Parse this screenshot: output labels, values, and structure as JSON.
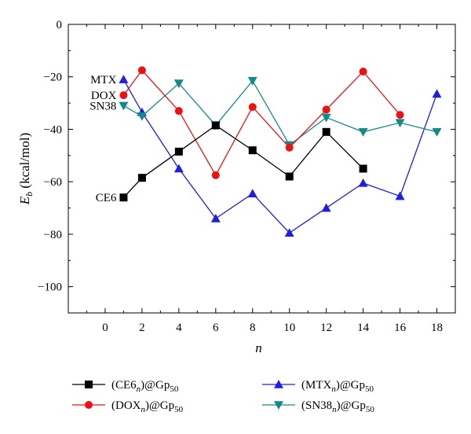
{
  "chart_data": {
    "type": "line",
    "title": "",
    "xlabel": {
      "base": "n"
    },
    "ylabel": {
      "base": "E",
      "sub": "b",
      "rest": " (kcal/mol)"
    },
    "xlim": [
      -2,
      19
    ],
    "ylim": [
      -110,
      0
    ],
    "xticks": [
      0,
      2,
      4,
      6,
      8,
      10,
      12,
      14,
      16,
      18
    ],
    "yticks": [
      0,
      -20,
      -40,
      -60,
      -80,
      -100
    ],
    "xtick_labels": [
      "0",
      "2",
      "4",
      "6",
      "8",
      "10",
      "12",
      "14",
      "16",
      "18"
    ],
    "ytick_labels": [
      "0",
      "−20",
      "−40",
      "−60",
      "−80",
      "−100"
    ],
    "grid": false,
    "legend_position": "bottom",
    "series": [
      {
        "id": "ce6",
        "label": "CE6",
        "legend": {
          "pre": "(CE6",
          "sub1": "n",
          "mid": ")@Gp",
          "sub2": "50"
        },
        "color": "#000000",
        "marker": "square",
        "x": [
          1,
          2,
          4,
          6,
          8,
          10,
          12,
          14
        ],
        "y": [
          -66,
          -58.5,
          -48.5,
          -38.5,
          -48,
          -58,
          -41,
          -55
        ]
      },
      {
        "id": "dox",
        "label": "DOX",
        "legend": {
          "pre": "(DOX",
          "sub1": "n",
          "mid": ")@Gp",
          "sub2": "50"
        },
        "color": "#ee1111",
        "marker": "circle",
        "x": [
          1,
          2,
          4,
          6,
          8,
          10,
          12,
          14,
          16
        ],
        "y": [
          -27,
          -17.5,
          -33,
          -57.5,
          -31.5,
          -47,
          -32.5,
          -18,
          -34.5
        ]
      },
      {
        "id": "mtx",
        "label": "MTX",
        "legend": {
          "pre": "(MTX",
          "sub1": "n",
          "mid": ")@Gp",
          "sub2": "50"
        },
        "color": "#1f1fe0",
        "marker": "triangle-up",
        "x": [
          1,
          2,
          4,
          6,
          8,
          10,
          12,
          14,
          16,
          18
        ],
        "y": [
          -21,
          -33.5,
          -55,
          -74,
          -64.5,
          -79.5,
          -70,
          -60.5,
          -65.5,
          -26.5
        ]
      },
      {
        "id": "sn38",
        "label": "SN38",
        "legend": {
          "pre": "(SN38",
          "sub1": "n",
          "mid": ")@Gp",
          "sub2": "50"
        },
        "color": "#138a8a",
        "marker": "triangle-down",
        "x": [
          1,
          2,
          4,
          6,
          8,
          10,
          12,
          14,
          16,
          18
        ],
        "y": [
          -31,
          -35,
          -22.5,
          -38.5,
          -21.5,
          -46,
          -35.5,
          -41,
          -37.5,
          -41
        ]
      }
    ]
  }
}
